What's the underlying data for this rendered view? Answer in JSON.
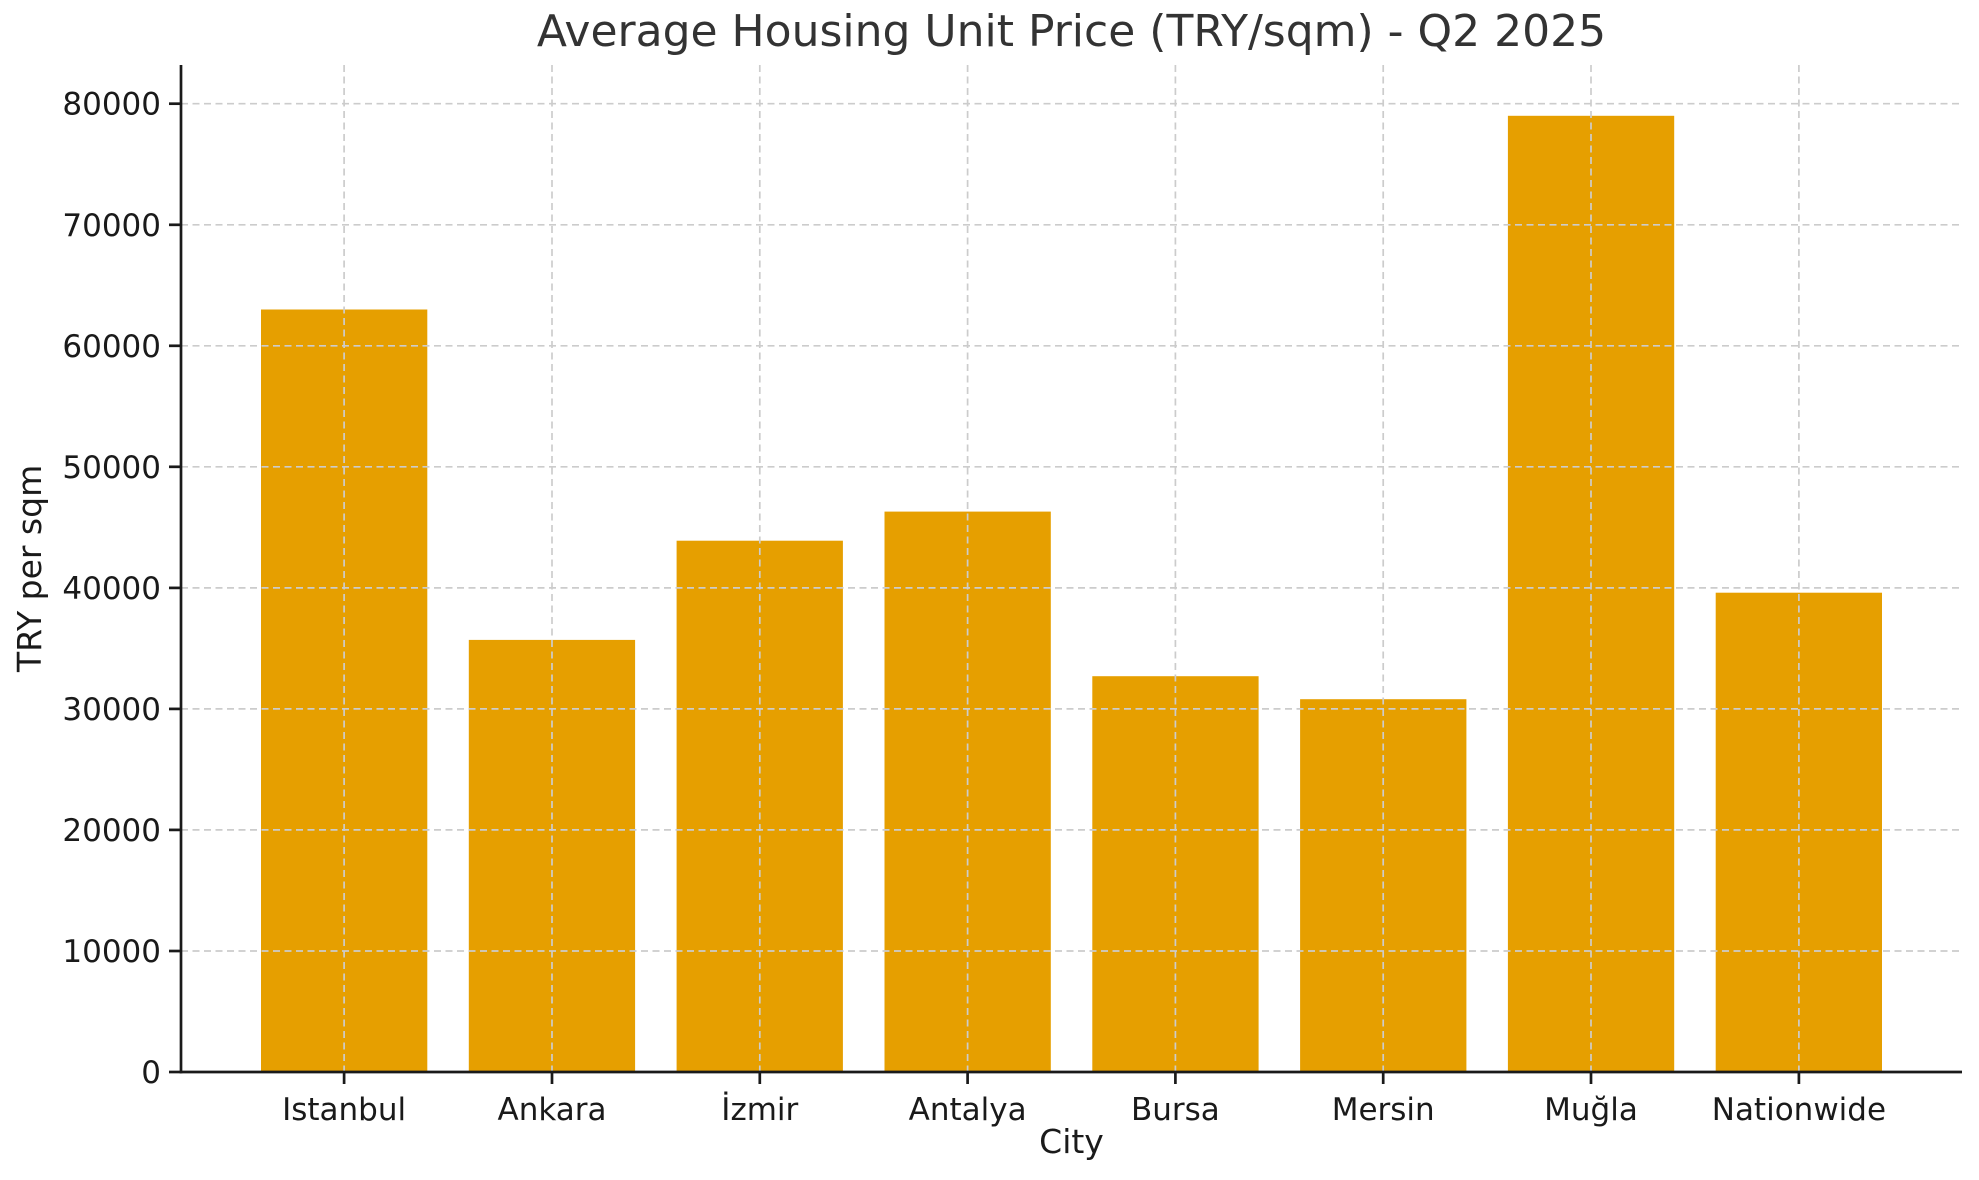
{
  "chart_data": {
    "type": "bar",
    "title": "Average Housing Unit Price (TRY/sqm) - Q2 2025",
    "xlabel": "City",
    "ylabel": "TRY per sqm",
    "categories": [
      "Istanbul",
      "Ankara",
      "İzmir",
      "Antalya",
      "Bursa",
      "Mersin",
      "Muğla",
      "Nationwide"
    ],
    "values": [
      63000,
      35700,
      43900,
      46300,
      32700,
      30800,
      79000,
      39600
    ],
    "yticks": [
      0,
      10000,
      20000,
      30000,
      40000,
      50000,
      60000,
      70000,
      80000
    ],
    "ylim": [
      0,
      83200
    ],
    "bar_color": "#E69F00",
    "grid": true,
    "grid_style": "dashed",
    "grid_color": "#cccccc",
    "spine_color": "#1a1a1a",
    "grid_above_bars": true,
    "legend": "none"
  }
}
